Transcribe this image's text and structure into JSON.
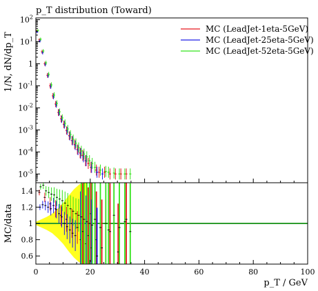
{
  "chart_data": [
    {
      "type": "scatter",
      "panel": "main",
      "title": "p_T distribution (Toward)",
      "ylabel": "1/N, dN/dp_T",
      "yscale": "log",
      "ylim": [
        4e-06,
        120
      ],
      "xlim": [
        0,
        100
      ],
      "yticklabels": [
        "10^2",
        "10^1",
        "1",
        "10^-1",
        "10^-2",
        "10^-3",
        "10^-4",
        "10^-5"
      ],
      "legend_position": "top-right",
      "series": [
        {
          "name": "MC (LeadJet-1eta-5GeV)",
          "color": "#e8161c",
          "x": [
            0.5,
            1.5,
            2.5,
            3.5,
            4.5,
            5.5,
            6.5,
            7.5,
            8.5,
            9.5,
            10.5,
            11.5,
            12.5,
            13.5,
            14.5,
            15.5,
            16.5,
            17.5,
            18.5,
            19.5,
            20.5,
            22.5,
            23.5,
            25.5,
            27.5,
            29.5,
            31.5,
            33.5
          ],
          "y": [
            30,
            12,
            3.5,
            1.0,
            0.3,
            0.1,
            0.035,
            0.015,
            0.0062,
            0.0032,
            0.0018,
            0.00095,
            0.00055,
            0.00033,
            0.00022,
            0.00013,
            9e-05,
            7e-05,
            4e-05,
            3e-05,
            2e-05,
            1.5e-05,
            1.2e-05,
            1.2e-05,
            1e-05,
            1e-05,
            1e-05,
            1e-05
          ]
        },
        {
          "name": "MC (LeadJet-25eta-5GeV)",
          "color": "#1c1ce8",
          "x": [
            0.5,
            1.5,
            2.5,
            3.5,
            4.5,
            5.5,
            6.5,
            7.5,
            8.5,
            9.5,
            10.5,
            11.5,
            12.5,
            13.5,
            14.5,
            15.5,
            16.5,
            17.5,
            18.5,
            20.5,
            22.5,
            24.5
          ],
          "y": [
            28,
            11,
            3.2,
            0.95,
            0.29,
            0.095,
            0.033,
            0.014,
            0.006,
            0.003,
            0.0017,
            0.0009,
            0.00052,
            0.00032,
            0.0002,
            0.00012,
            8.5e-05,
            6e-05,
            4e-05,
            2e-05,
            1.2e-05,
            1e-05
          ]
        },
        {
          "name": "MC (LeadJet-52eta-5GeV)",
          "color": "#33e31c",
          "x": [
            0.5,
            1.5,
            2.5,
            3.5,
            4.5,
            5.5,
            6.5,
            7.5,
            8.5,
            9.5,
            10.5,
            11.5,
            12.5,
            13.5,
            14.5,
            15.5,
            16.5,
            17.5,
            18.5,
            19.5,
            20.5,
            21.5,
            23.5,
            25.5,
            26.5,
            28.5,
            30.5,
            32.5,
            34.5
          ],
          "y": [
            32,
            13,
            3.8,
            1.1,
            0.33,
            0.11,
            0.038,
            0.016,
            0.0066,
            0.0035,
            0.002,
            0.0011,
            0.00062,
            0.00038,
            0.00025,
            0.00016,
            0.00011,
            8e-05,
            6e-05,
            4e-05,
            3e-05,
            2e-05,
            1.5e-05,
            1.3e-05,
            1.2e-05,
            1.1e-05,
            1e-05,
            1e-05,
            1e-05
          ]
        }
      ]
    },
    {
      "type": "scatter",
      "panel": "ratio",
      "ylabel": "MC/data",
      "xlabel": "p_T / GeV",
      "xlim": [
        0,
        100
      ],
      "ylim": [
        0.5,
        1.5
      ],
      "xticks": [
        0,
        20,
        40,
        60,
        80,
        100
      ],
      "yticks": [
        0.6,
        0.8,
        1,
        1.2,
        1.4
      ],
      "reference_line": 1,
      "reference_color": "#2e9c2e",
      "uncertainty_band": {
        "color": "#ffff1f",
        "x": [
          0,
          2,
          4,
          6,
          8,
          10,
          12,
          14,
          16,
          18,
          19
        ],
        "lower": [
          0.98,
          0.95,
          0.92,
          0.88,
          0.82,
          0.75,
          0.66,
          0.58,
          0.52,
          0.5,
          0.5
        ],
        "upper": [
          1.02,
          1.05,
          1.08,
          1.12,
          1.18,
          1.25,
          1.34,
          1.42,
          1.48,
          1.5,
          1.5
        ]
      },
      "series": [
        {
          "name": "MC (LeadJet-1eta-5GeV)",
          "color": "#e8161c",
          "x": [
            1.5,
            3.5,
            5.5,
            7.5,
            9.5,
            11.5,
            13.5,
            15.5,
            17.5,
            19.5,
            20.5,
            22.5,
            24.5,
            27.5,
            30.5,
            33.5
          ],
          "y": [
            1.38,
            1.32,
            1.24,
            1.18,
            1.1,
            1.05,
            1.0,
            0.95,
            0.9,
            0.85,
            1.12,
            0.8,
            0.7,
            0.9,
            0.65,
            1.05
          ]
        },
        {
          "name": "MC (LeadJet-25eta-5GeV)",
          "color": "#1c1ce8",
          "x": [
            1.5,
            2.5,
            3.5,
            4.5,
            5.5,
            6.5,
            7.5,
            8.5,
            9.5,
            10.5,
            11.5,
            12.5,
            13.5,
            14.5,
            16.5,
            18.5,
            20.5,
            22.5
          ],
          "y": [
            1.2,
            1.23,
            1.22,
            1.2,
            1.18,
            1.22,
            1.17,
            1.12,
            1.08,
            1.0,
            0.96,
            0.92,
            0.88,
            0.85,
            0.8,
            0.75,
            0.7,
            0.6
          ]
        },
        {
          "name": "MC (LeadJet-52eta-5GeV)",
          "color": "#33e31c",
          "x": [
            1.5,
            2.5,
            3.5,
            4.5,
            5.5,
            6.5,
            7.5,
            8.5,
            9.5,
            10.5,
            11.5,
            12.5,
            13.5,
            14.5,
            15.5,
            16.5,
            17.5,
            18.5,
            19.5,
            20.5,
            21.5,
            23.5,
            25.5,
            26.5,
            28.5,
            30.5,
            32.5,
            34.5
          ],
          "y": [
            1.45,
            1.47,
            1.4,
            1.38,
            1.36,
            1.35,
            1.32,
            1.3,
            1.28,
            1.25,
            1.22,
            1.18,
            1.15,
            1.12,
            1.1,
            1.08,
            1.05,
            1.02,
            1.0,
            0.98,
            1.05,
            0.95,
            1.0,
            0.92,
            1.1,
            0.95,
            1.02,
            0.9
          ]
        }
      ]
    }
  ]
}
